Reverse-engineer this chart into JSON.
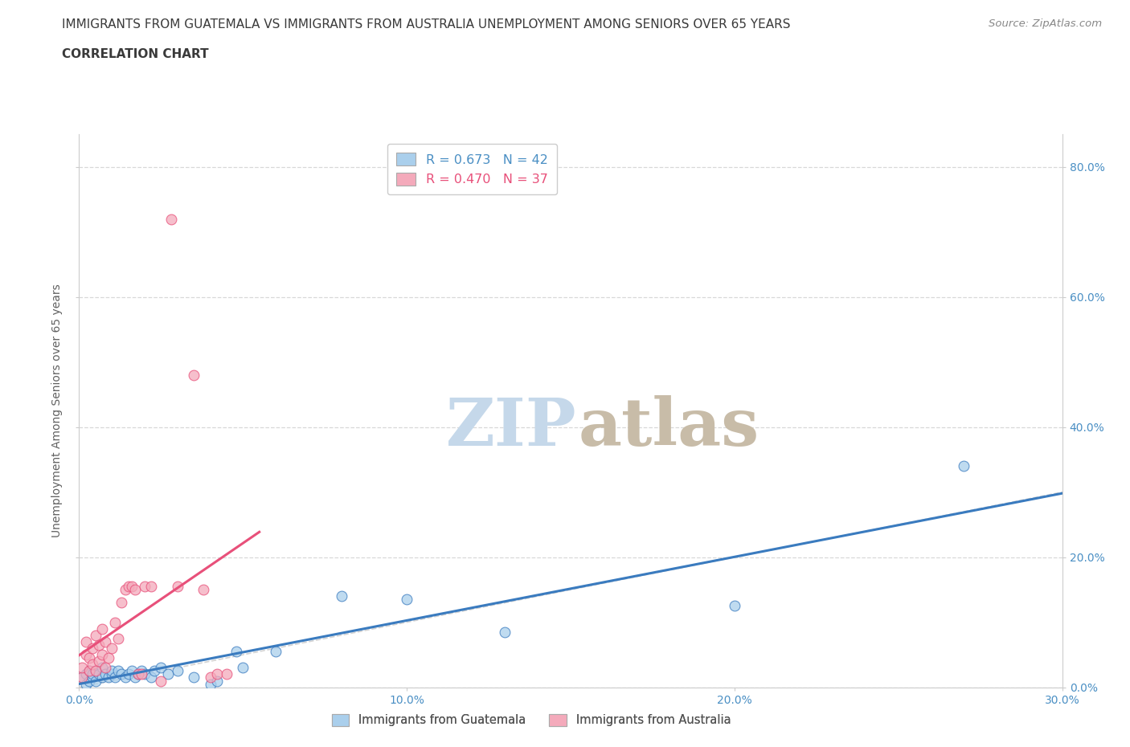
{
  "title_line1": "IMMIGRANTS FROM GUATEMALA VS IMMIGRANTS FROM AUSTRALIA UNEMPLOYMENT AMONG SENIORS OVER 65 YEARS",
  "title_line2": "CORRELATION CHART",
  "source": "Source: ZipAtlas.com",
  "xlim": [
    0.0,
    0.3
  ],
  "ylim": [
    0.0,
    0.85
  ],
  "x_tick_vals": [
    0.0,
    0.1,
    0.2,
    0.3
  ],
  "y_tick_vals": [
    0.0,
    0.2,
    0.4,
    0.6,
    0.8
  ],
  "legend_entries": [
    {
      "label": "R = 0.673   N = 42",
      "color": "#aacfec"
    },
    {
      "label": "R = 0.470   N = 37",
      "color": "#f4aabb"
    }
  ],
  "legend_bottom": [
    {
      "label": "Immigrants from Guatemala",
      "color": "#aacfec"
    },
    {
      "label": "Immigrants from Australia",
      "color": "#f4aabb"
    }
  ],
  "guatemala_points": [
    [
      0.001,
      0.015
    ],
    [
      0.002,
      0.005
    ],
    [
      0.002,
      0.02
    ],
    [
      0.003,
      0.01
    ],
    [
      0.003,
      0.025
    ],
    [
      0.004,
      0.015
    ],
    [
      0.004,
      0.02
    ],
    [
      0.005,
      0.01
    ],
    [
      0.005,
      0.025
    ],
    [
      0.006,
      0.02
    ],
    [
      0.007,
      0.015
    ],
    [
      0.007,
      0.03
    ],
    [
      0.008,
      0.02
    ],
    [
      0.009,
      0.015
    ],
    [
      0.01,
      0.02
    ],
    [
      0.01,
      0.025
    ],
    [
      0.011,
      0.015
    ],
    [
      0.012,
      0.025
    ],
    [
      0.013,
      0.02
    ],
    [
      0.014,
      0.015
    ],
    [
      0.015,
      0.02
    ],
    [
      0.016,
      0.025
    ],
    [
      0.017,
      0.015
    ],
    [
      0.018,
      0.02
    ],
    [
      0.019,
      0.025
    ],
    [
      0.02,
      0.02
    ],
    [
      0.022,
      0.015
    ],
    [
      0.023,
      0.025
    ],
    [
      0.025,
      0.03
    ],
    [
      0.027,
      0.02
    ],
    [
      0.03,
      0.025
    ],
    [
      0.035,
      0.015
    ],
    [
      0.04,
      0.005
    ],
    [
      0.042,
      0.01
    ],
    [
      0.048,
      0.055
    ],
    [
      0.05,
      0.03
    ],
    [
      0.06,
      0.055
    ],
    [
      0.08,
      0.14
    ],
    [
      0.1,
      0.135
    ],
    [
      0.13,
      0.085
    ],
    [
      0.2,
      0.125
    ],
    [
      0.27,
      0.34
    ]
  ],
  "australia_points": [
    [
      0.001,
      0.015
    ],
    [
      0.001,
      0.03
    ],
    [
      0.002,
      0.05
    ],
    [
      0.002,
      0.07
    ],
    [
      0.003,
      0.025
    ],
    [
      0.003,
      0.045
    ],
    [
      0.004,
      0.06
    ],
    [
      0.004,
      0.035
    ],
    [
      0.005,
      0.08
    ],
    [
      0.005,
      0.025
    ],
    [
      0.006,
      0.04
    ],
    [
      0.006,
      0.065
    ],
    [
      0.007,
      0.09
    ],
    [
      0.007,
      0.05
    ],
    [
      0.008,
      0.03
    ],
    [
      0.008,
      0.07
    ],
    [
      0.009,
      0.045
    ],
    [
      0.01,
      0.06
    ],
    [
      0.011,
      0.1
    ],
    [
      0.012,
      0.075
    ],
    [
      0.013,
      0.13
    ],
    [
      0.014,
      0.15
    ],
    [
      0.015,
      0.155
    ],
    [
      0.016,
      0.155
    ],
    [
      0.017,
      0.15
    ],
    [
      0.018,
      0.02
    ],
    [
      0.019,
      0.02
    ],
    [
      0.02,
      0.155
    ],
    [
      0.022,
      0.155
    ],
    [
      0.025,
      0.01
    ],
    [
      0.028,
      0.72
    ],
    [
      0.03,
      0.155
    ],
    [
      0.035,
      0.48
    ],
    [
      0.038,
      0.15
    ],
    [
      0.04,
      0.015
    ],
    [
      0.042,
      0.02
    ],
    [
      0.045,
      0.02
    ]
  ],
  "dot_color_guatemala": "#aacfec",
  "dot_color_australia": "#f4aabb",
  "line_color_guatemala": "#3a7bbf",
  "line_color_australia": "#e8507a",
  "diagonal_color": "#c8c8c8",
  "title_color": "#3a3a3a",
  "tick_color": "#4a8fc4",
  "grid_color": "#d8d8d8",
  "background_color": "#ffffff",
  "watermark_ZIP_color": "#c5d8ea",
  "watermark_atlas_color": "#c8bca8"
}
